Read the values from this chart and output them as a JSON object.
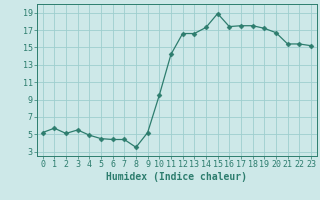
{
  "x": [
    0,
    1,
    2,
    3,
    4,
    5,
    6,
    7,
    8,
    9,
    10,
    11,
    12,
    13,
    14,
    15,
    16,
    17,
    18,
    19,
    20,
    21,
    22,
    23
  ],
  "y": [
    5.2,
    5.7,
    5.1,
    5.5,
    4.9,
    4.5,
    4.4,
    4.4,
    3.5,
    5.2,
    9.5,
    14.2,
    16.6,
    16.6,
    17.3,
    18.9,
    17.4,
    17.5,
    17.5,
    17.2,
    16.7,
    15.4,
    15.4,
    15.2
  ],
  "line_color": "#2d7d6e",
  "marker": "D",
  "marker_size": 2.5,
  "bg_color": "#cde8e8",
  "grid_color": "#9ecece",
  "xlabel": "Humidex (Indice chaleur)",
  "xlim": [
    -0.5,
    23.5
  ],
  "ylim": [
    2.5,
    20.0
  ],
  "yticks": [
    3,
    5,
    7,
    9,
    11,
    13,
    15,
    17,
    19
  ],
  "xticks": [
    0,
    1,
    2,
    3,
    4,
    5,
    6,
    7,
    8,
    9,
    10,
    11,
    12,
    13,
    14,
    15,
    16,
    17,
    18,
    19,
    20,
    21,
    22,
    23
  ],
  "tick_color": "#2d7d6e",
  "axis_color": "#2d7d6e",
  "label_fontsize": 7,
  "tick_fontsize": 6
}
